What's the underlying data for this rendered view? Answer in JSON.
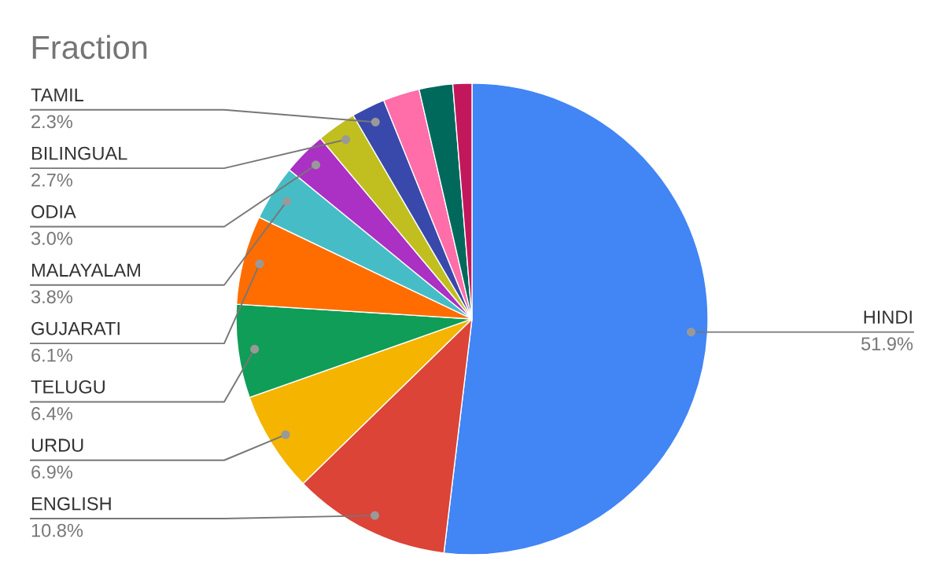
{
  "chart_data": {
    "type": "pie",
    "title": "Fraction",
    "categories": [
      "HINDI",
      "ENGLISH",
      "URDU",
      "TELUGU",
      "GUJARATI",
      "MALAYALAM",
      "ODIA",
      "BILINGUAL",
      "TAMIL",
      null,
      null,
      null
    ],
    "values": [
      51.9,
      10.8,
      6.9,
      6.4,
      6.1,
      3.8,
      3.0,
      2.7,
      2.3,
      2.5,
      2.3,
      1.3
    ],
    "colors": [
      "#4285f4",
      "#db4437",
      "#f4b400",
      "#0f9d58",
      "#ff6d01",
      "#46bdc6",
      "#ab30c4",
      "#c1bf1f",
      "#3949ab",
      "#ff6ea8",
      "#00695c",
      "#c2185b"
    ],
    "value_labels": [
      "51.9%",
      "10.8%",
      "6.9%",
      "6.4%",
      "6.1%",
      "3.8%",
      "3.0%",
      "2.7%",
      "2.3%",
      null,
      null,
      null
    ]
  }
}
